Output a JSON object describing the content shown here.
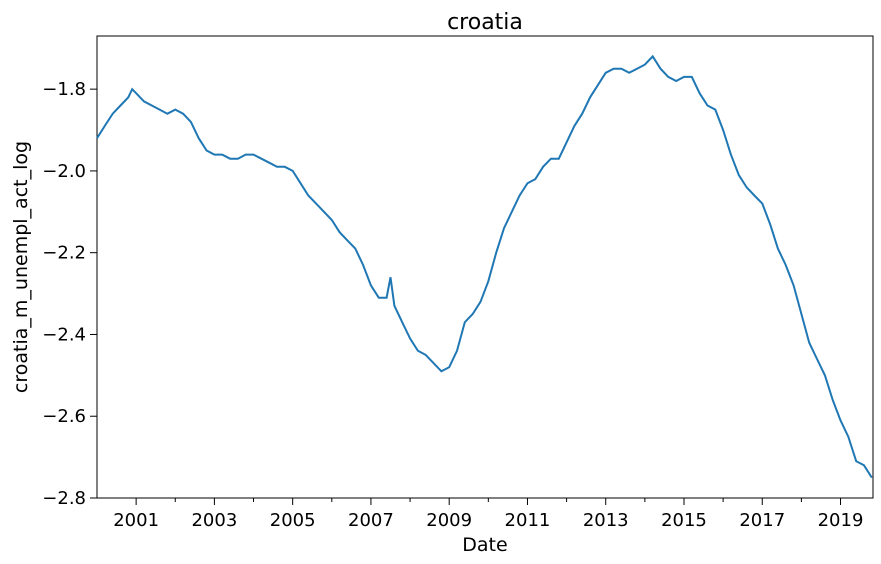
{
  "chart_data": {
    "type": "line",
    "title": "croatia",
    "xlabel": "Date",
    "ylabel": "croatia_m_unempl_act_log",
    "xlim": [
      2000.0,
      2019.83
    ],
    "ylim": [
      -2.8,
      -1.67
    ],
    "xticks": [
      "2001",
      "2003",
      "2005",
      "2007",
      "2009",
      "2011",
      "2013",
      "2015",
      "2017",
      "2019"
    ],
    "xtick_values": [
      2001,
      2003,
      2005,
      2007,
      2009,
      2011,
      2013,
      2015,
      2017,
      2019
    ],
    "yticks": [
      "−1.8",
      "−2.0",
      "−2.2",
      "−2.4",
      "−2.6",
      "−2.8"
    ],
    "ytick_values": [
      -1.8,
      -2.0,
      -2.2,
      -2.4,
      -2.6,
      -2.8
    ],
    "grid": false,
    "line_color": "#1f77b4",
    "series": [
      {
        "x": [
          2000.0,
          2000.2,
          2000.4,
          2000.6,
          2000.8,
          2000.9,
          2001.0,
          2001.2,
          2001.4,
          2001.6,
          2001.8,
          2002.0,
          2002.2,
          2002.4,
          2002.6,
          2002.8,
          2003.0,
          2003.2,
          2003.4,
          2003.6,
          2003.8,
          2004.0,
          2004.2,
          2004.4,
          2004.6,
          2004.8,
          2005.0,
          2005.2,
          2005.4,
          2005.6,
          2005.8,
          2006.0,
          2006.2,
          2006.4,
          2006.6,
          2006.8,
          2007.0,
          2007.2,
          2007.4,
          2007.5,
          2007.6,
          2007.8,
          2008.0,
          2008.2,
          2008.4,
          2008.6,
          2008.8,
          2009.0,
          2009.2,
          2009.4,
          2009.6,
          2009.8,
          2010.0,
          2010.2,
          2010.4,
          2010.6,
          2010.8,
          2011.0,
          2011.2,
          2011.4,
          2011.6,
          2011.8,
          2012.0,
          2012.2,
          2012.4,
          2012.6,
          2012.8,
          2013.0,
          2013.2,
          2013.4,
          2013.6,
          2013.8,
          2014.0,
          2014.2,
          2014.4,
          2014.6,
          2014.8,
          2015.0,
          2015.2,
          2015.4,
          2015.6,
          2015.8,
          2016.0,
          2016.2,
          2016.4,
          2016.6,
          2016.8,
          2017.0,
          2017.2,
          2017.4,
          2017.6,
          2017.8,
          2018.0,
          2018.2,
          2018.4,
          2018.6,
          2018.8,
          2019.0,
          2019.2,
          2019.4,
          2019.6,
          2019.8
        ],
        "y": [
          -1.92,
          -1.89,
          -1.86,
          -1.84,
          -1.82,
          -1.8,
          -1.81,
          -1.83,
          -1.84,
          -1.85,
          -1.86,
          -1.85,
          -1.86,
          -1.88,
          -1.92,
          -1.95,
          -1.96,
          -1.96,
          -1.97,
          -1.97,
          -1.96,
          -1.96,
          -1.97,
          -1.98,
          -1.99,
          -1.99,
          -2.0,
          -2.03,
          -2.06,
          -2.08,
          -2.1,
          -2.12,
          -2.15,
          -2.17,
          -2.19,
          -2.23,
          -2.28,
          -2.31,
          -2.31,
          -2.26,
          -2.33,
          -2.37,
          -2.41,
          -2.44,
          -2.45,
          -2.47,
          -2.49,
          -2.48,
          -2.44,
          -2.37,
          -2.35,
          -2.32,
          -2.27,
          -2.2,
          -2.14,
          -2.1,
          -2.06,
          -2.03,
          -2.02,
          -1.99,
          -1.97,
          -1.97,
          -1.93,
          -1.89,
          -1.86,
          -1.82,
          -1.79,
          -1.76,
          -1.75,
          -1.75,
          -1.76,
          -1.75,
          -1.74,
          -1.72,
          -1.75,
          -1.77,
          -1.78,
          -1.77,
          -1.77,
          -1.81,
          -1.84,
          -1.85,
          -1.9,
          -1.96,
          -2.01,
          -2.04,
          -2.06,
          -2.08,
          -2.13,
          -2.19,
          -2.23,
          -2.28,
          -2.35,
          -2.42,
          -2.46,
          -2.5,
          -2.56,
          -2.61,
          -2.65,
          -2.71,
          -2.72,
          -2.75
        ]
      }
    ]
  }
}
